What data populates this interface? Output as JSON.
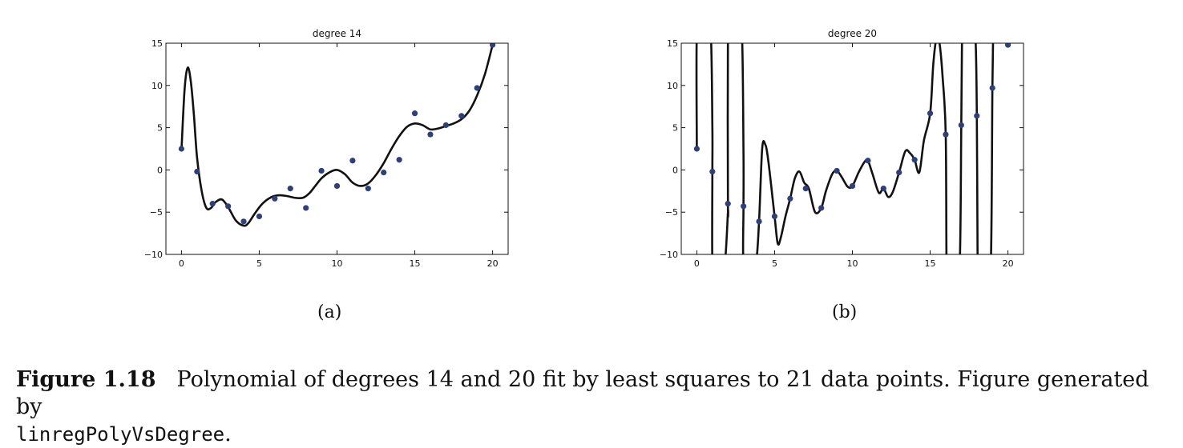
{
  "chart_data": [
    {
      "type": "scatter",
      "title": "degree 14",
      "panel_label": "(a)",
      "xlim": [
        -1,
        21
      ],
      "ylim": [
        -10,
        15
      ],
      "xticks": [
        0,
        5,
        10,
        15,
        20
      ],
      "yticks": [
        -10,
        -5,
        0,
        5,
        10,
        15
      ],
      "series": [
        {
          "kind": "points",
          "color": "#2e3f7a",
          "x": [
            0,
            1,
            2,
            3,
            4,
            5,
            6,
            7,
            8,
            9,
            10,
            11,
            12,
            13,
            14,
            15,
            16,
            17,
            18,
            19,
            20
          ],
          "y": [
            2.5,
            -0.2,
            -4.0,
            -4.3,
            -6.1,
            -5.5,
            -3.4,
            -2.2,
            -4.5,
            -0.1,
            -1.9,
            1.1,
            -2.2,
            -0.3,
            1.2,
            6.7,
            4.2,
            5.3,
            6.4,
            9.7,
            14.8
          ]
        },
        {
          "kind": "curve",
          "color": "#111111",
          "x": [
            0,
            0.2,
            0.4,
            0.6,
            0.8,
            1.0,
            1.3,
            1.6,
            1.9,
            2.2,
            2.6,
            3.0,
            3.5,
            4.0,
            4.3,
            4.7,
            5.2,
            5.8,
            6.3,
            6.8,
            7.3,
            7.8,
            8.2,
            8.6,
            9.0,
            9.5,
            10.0,
            10.5,
            11.0,
            11.5,
            12.0,
            12.5,
            13.0,
            13.5,
            14.0,
            14.5,
            15.0,
            15.5,
            16.0,
            16.5,
            17.0,
            17.5,
            18.0,
            18.5,
            19.0,
            19.5,
            20.0
          ],
          "y": [
            2.3,
            9.5,
            12.1,
            10.5,
            6.5,
            1.5,
            -2.5,
            -4.5,
            -4.5,
            -3.8,
            -3.5,
            -4.4,
            -6.0,
            -6.6,
            -6.3,
            -5.2,
            -4.0,
            -3.2,
            -3.0,
            -3.1,
            -3.3,
            -3.3,
            -2.8,
            -1.9,
            -1.0,
            -0.3,
            0.0,
            -0.5,
            -1.5,
            -1.9,
            -1.6,
            -0.6,
            0.8,
            2.5,
            4.0,
            5.1,
            5.5,
            5.3,
            4.8,
            4.9,
            5.2,
            5.5,
            6.0,
            7.0,
            8.8,
            11.3,
            14.8
          ]
        }
      ]
    },
    {
      "type": "scatter",
      "title": "degree 20",
      "panel_label": "(b)",
      "xlim": [
        -1,
        21
      ],
      "ylim": [
        -10,
        15
      ],
      "xticks": [
        0,
        5,
        10,
        15,
        20
      ],
      "yticks": [
        -10,
        -5,
        0,
        5,
        10,
        15
      ],
      "series": [
        {
          "kind": "points",
          "color": "#2e3f7a",
          "x": [
            0,
            1,
            2,
            3,
            4,
            5,
            6,
            7,
            8,
            9,
            10,
            11,
            12,
            13,
            14,
            15,
            16,
            17,
            18,
            19,
            20
          ],
          "y": [
            2.5,
            -0.2,
            -4.0,
            -4.3,
            -6.1,
            -5.5,
            -3.4,
            -2.2,
            -4.5,
            -0.1,
            -1.9,
            1.1,
            -2.2,
            -0.3,
            1.2,
            6.7,
            4.2,
            5.3,
            6.4,
            9.7,
            14.8
          ]
        },
        {
          "kind": "curve",
          "color": "#111111",
          "x": [
            0,
            0.0,
            0.3,
            0.6,
            0.9,
            1.0,
            1.0,
            1.0,
            1.2,
            1.5,
            1.8,
            2.0,
            2.0,
            2.0,
            2.2,
            2.6,
            2.9,
            3.0,
            3.0,
            3.0,
            3.4,
            3.8,
            4.0,
            4.2,
            4.4,
            4.6,
            5.0,
            5.2,
            5.4,
            5.7,
            6.0,
            6.3,
            6.6,
            6.9,
            7.2,
            7.6,
            8.0,
            8.3,
            8.7,
            9.0,
            9.3,
            9.7,
            10.0,
            10.4,
            10.8,
            11.0,
            11.3,
            11.7,
            12.0,
            12.3,
            12.6,
            13.0,
            13.4,
            13.7,
            14.0,
            14.3,
            14.6,
            15.0,
            15.2,
            15.4,
            15.6,
            15.8,
            16.0,
            16.05,
            16.1,
            16.3,
            16.6,
            16.9,
            17.0,
            17.05,
            17.1,
            17.3,
            17.6,
            17.9,
            18.0,
            18.05,
            18.1,
            18.3,
            18.6,
            18.9,
            19.0,
            19.05,
            19.1,
            19.3,
            19.6,
            19.9
          ],
          "y": [
            2.5,
            16,
            16,
            16,
            16,
            5,
            -0.2,
            -11,
            -11,
            -11,
            -11,
            -5,
            -4.0,
            16,
            16,
            16,
            16,
            2,
            -4.3,
            -11,
            -11,
            -11,
            -6.1,
            2.5,
            3.0,
            1.0,
            -5.5,
            -8.7,
            -8.0,
            -5.5,
            -3.4,
            -1.0,
            -0.2,
            -1.5,
            -2.2,
            -5.0,
            -4.5,
            -2.5,
            -0.5,
            -0.1,
            -0.8,
            -2.0,
            -1.9,
            -0.3,
            1.0,
            1.1,
            -0.5,
            -2.7,
            -2.2,
            -3.2,
            -2.6,
            -0.3,
            2.2,
            2.0,
            1.2,
            -0.3,
            3.5,
            6.7,
            12.5,
            15.5,
            15,
            11,
            4.2,
            -11,
            -11,
            -11,
            -11,
            -11,
            5.3,
            16,
            16,
            16,
            16,
            16,
            6.4,
            -11,
            -11,
            -11,
            -11,
            -11,
            9.7,
            16,
            16,
            16,
            16,
            16
          ]
        }
      ]
    }
  ],
  "caption": {
    "fig_num": "Figure 1.18",
    "text": "Polynomial of degrees 14 and 20 fit by least squares to 21 data points. Figure generated by",
    "code": "linregPolyVsDegree",
    "tail": "."
  }
}
